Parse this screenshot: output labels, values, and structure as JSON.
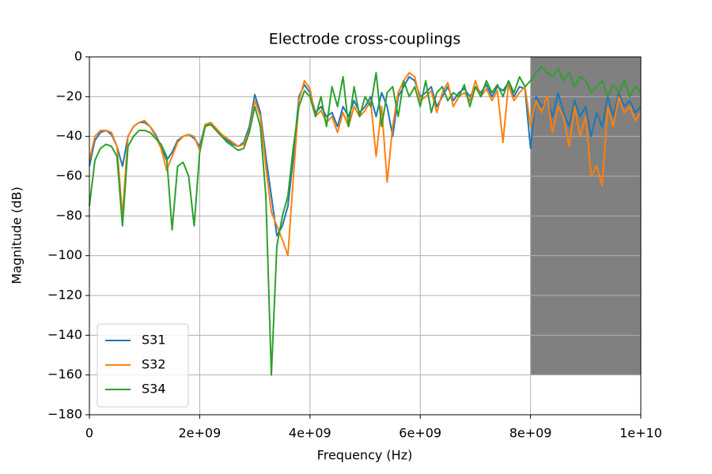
{
  "chart_data": {
    "type": "line",
    "title": "Electrode cross-couplings",
    "x_label": "Frequency (Hz)",
    "y_label": "Magnitude (dB)",
    "x": [
      0,
      100000000.0,
      200000000.0,
      300000000.0,
      400000000.0,
      500000000.0,
      600000000.0,
      700000000.0,
      800000000.0,
      900000000.0,
      1000000000.0,
      1100000000.0,
      1200000000.0,
      1300000000.0,
      1400000000.0,
      1500000000.0,
      1600000000.0,
      1700000000.0,
      1800000000.0,
      1900000000.0,
      2000000000.0,
      2100000000.0,
      2200000000.0,
      2300000000.0,
      2400000000.0,
      2500000000.0,
      2600000000.0,
      2700000000.0,
      2800000000.0,
      2900000000.0,
      3000000000.0,
      3100000000.0,
      3200000000.0,
      3300000000.0,
      3400000000.0,
      3500000000.0,
      3600000000.0,
      3700000000.0,
      3800000000.0,
      3900000000.0,
      4000000000.0,
      4100000000.0,
      4200000000.0,
      4300000000.0,
      4400000000.0,
      4500000000.0,
      4600000000.0,
      4700000000.0,
      4800000000.0,
      4900000000.0,
      5000000000.0,
      5100000000.0,
      5200000000.0,
      5300000000.0,
      5400000000.0,
      5500000000.0,
      5600000000.0,
      5700000000.0,
      5800000000.0,
      5900000000.0,
      6000000000.0,
      6100000000.0,
      6200000000.0,
      6300000000.0,
      6400000000.0,
      6500000000.0,
      6600000000.0,
      6700000000.0,
      6800000000.0,
      6900000000.0,
      7000000000.0,
      7100000000.0,
      7200000000.0,
      7300000000.0,
      7400000000.0,
      7500000000.0,
      7600000000.0,
      7700000000.0,
      7800000000.0,
      7900000000.0,
      8000000000.0,
      8100000000.0,
      8200000000.0,
      8300000000.0,
      8400000000.0,
      8500000000.0,
      8600000000.0,
      8700000000.0,
      8800000000.0,
      8900000000.0,
      9000000000.0,
      9100000000.0,
      9200000000.0,
      9300000000.0,
      9400000000.0,
      9500000000.0,
      9600000000.0,
      9700000000.0,
      9800000000.0,
      9900000000.0,
      10000000000.0
    ],
    "series": [
      {
        "name": "S31",
        "color": "#1f77b4",
        "values": [
          -55,
          -42,
          -38,
          -37,
          -39,
          -45,
          -55,
          -40,
          -35,
          -33,
          -33,
          -35,
          -39,
          -45,
          -52,
          -48,
          -42,
          -40,
          -39,
          -41,
          -45,
          -34,
          -34,
          -37,
          -40,
          -42,
          -44,
          -45,
          -43,
          -35,
          -19,
          -28,
          -50,
          -70,
          -90,
          -85,
          -75,
          -50,
          -20,
          -14,
          -18,
          -28,
          -25,
          -30,
          -28,
          -35,
          -25,
          -30,
          -22,
          -28,
          -25,
          -20,
          -30,
          -18,
          -25,
          -40,
          -20,
          -15,
          -10,
          -12,
          -20,
          -18,
          -15,
          -25,
          -20,
          -15,
          -22,
          -18,
          -16,
          -20,
          -15,
          -18,
          -14,
          -20,
          -15,
          -17,
          -13,
          -20,
          -15,
          -16,
          -46,
          -20,
          -25,
          -22,
          -30,
          -18,
          -28,
          -35,
          -22,
          -30,
          -25,
          -40,
          -28,
          -35,
          -20,
          -30,
          -18,
          -25,
          -22,
          -28,
          -25
        ]
      },
      {
        "name": "S32",
        "color": "#ff7f0e",
        "values": [
          -52,
          -40,
          -37,
          -37,
          -38,
          -45,
          -80,
          -40,
          -35,
          -33,
          -32,
          -35,
          -40,
          -46,
          -57,
          -50,
          -43,
          -40,
          -39,
          -40,
          -47,
          -34,
          -33,
          -36,
          -39,
          -41,
          -43,
          -45,
          -44,
          -37,
          -22,
          -30,
          -55,
          -78,
          -85,
          -92,
          -100,
          -60,
          -22,
          -12,
          -16,
          -30,
          -27,
          -33,
          -30,
          -38,
          -28,
          -35,
          -25,
          -30,
          -27,
          -22,
          -50,
          -25,
          -63,
          -35,
          -18,
          -12,
          -8,
          -10,
          -22,
          -20,
          -17,
          -28,
          -18,
          -13,
          -25,
          -20,
          -18,
          -22,
          -12,
          -20,
          -16,
          -22,
          -17,
          -43,
          -14,
          -22,
          -18,
          -15,
          -35,
          -22,
          -28,
          -20,
          -38,
          -25,
          -30,
          -45,
          -25,
          -40,
          -30,
          -60,
          -55,
          -65,
          -25,
          -35,
          -20,
          -28,
          -25,
          -32,
          -28
        ]
      },
      {
        "name": "S34",
        "color": "#2ca02c",
        "values": [
          -75,
          -52,
          -46,
          -44,
          -45,
          -50,
          -85,
          -45,
          -40,
          -37,
          -37,
          -38,
          -41,
          -44,
          -50,
          -87,
          -55,
          -53,
          -60,
          -85,
          -48,
          -35,
          -34,
          -37,
          -40,
          -43,
          -45,
          -47,
          -46,
          -38,
          -25,
          -35,
          -70,
          -160,
          -95,
          -80,
          -70,
          -45,
          -25,
          -17,
          -20,
          -30,
          -20,
          -35,
          -15,
          -25,
          -10,
          -35,
          -15,
          -30,
          -20,
          -25,
          -8,
          -35,
          -18,
          -15,
          -30,
          -12,
          -20,
          -15,
          -25,
          -12,
          -28,
          -18,
          -15,
          -22,
          -18,
          -20,
          -14,
          -25,
          -15,
          -20,
          -12,
          -18,
          -14,
          -20,
          -12,
          -18,
          -10,
          -15,
          -12,
          -8,
          -5,
          -8,
          -10,
          -6,
          -12,
          -8,
          -15,
          -10,
          -12,
          -18,
          -15,
          -12,
          -20,
          -14,
          -18,
          -12,
          -20,
          -15,
          -18
        ]
      }
    ],
    "shaded_region": {
      "xlim": [
        8000000000.0,
        10000000000.0
      ],
      "ylim": [
        -160,
        0
      ],
      "color": "#808080"
    },
    "xlim": [
      0,
      10000000000.0
    ],
    "xticks": [
      0,
      {
        "value": 2000000000.0,
        "label": "2e+09"
      },
      {
        "value": 4000000000.0,
        "label": "4e+09"
      },
      {
        "value": 6000000000.0,
        "label": "6e+09"
      },
      {
        "value": 8000000000.0,
        "label": "8e+09"
      },
      {
        "value": 10000000000.0,
        "label": "1e+10"
      }
    ],
    "ylim": [
      -180,
      0
    ],
    "yticks": [
      {
        "value": -180,
        "label": "−180"
      },
      {
        "value": -160,
        "label": "−160"
      },
      {
        "value": -140,
        "label": "−140"
      },
      {
        "value": -120,
        "label": "−120"
      },
      {
        "value": -100,
        "label": "−100"
      },
      {
        "value": -80,
        "label": "−80"
      },
      {
        "value": -60,
        "label": "−60"
      },
      {
        "value": -40,
        "label": "−40"
      },
      {
        "value": -20,
        "label": "−20"
      },
      0
    ],
    "grid": true,
    "legend": "lower left"
  }
}
